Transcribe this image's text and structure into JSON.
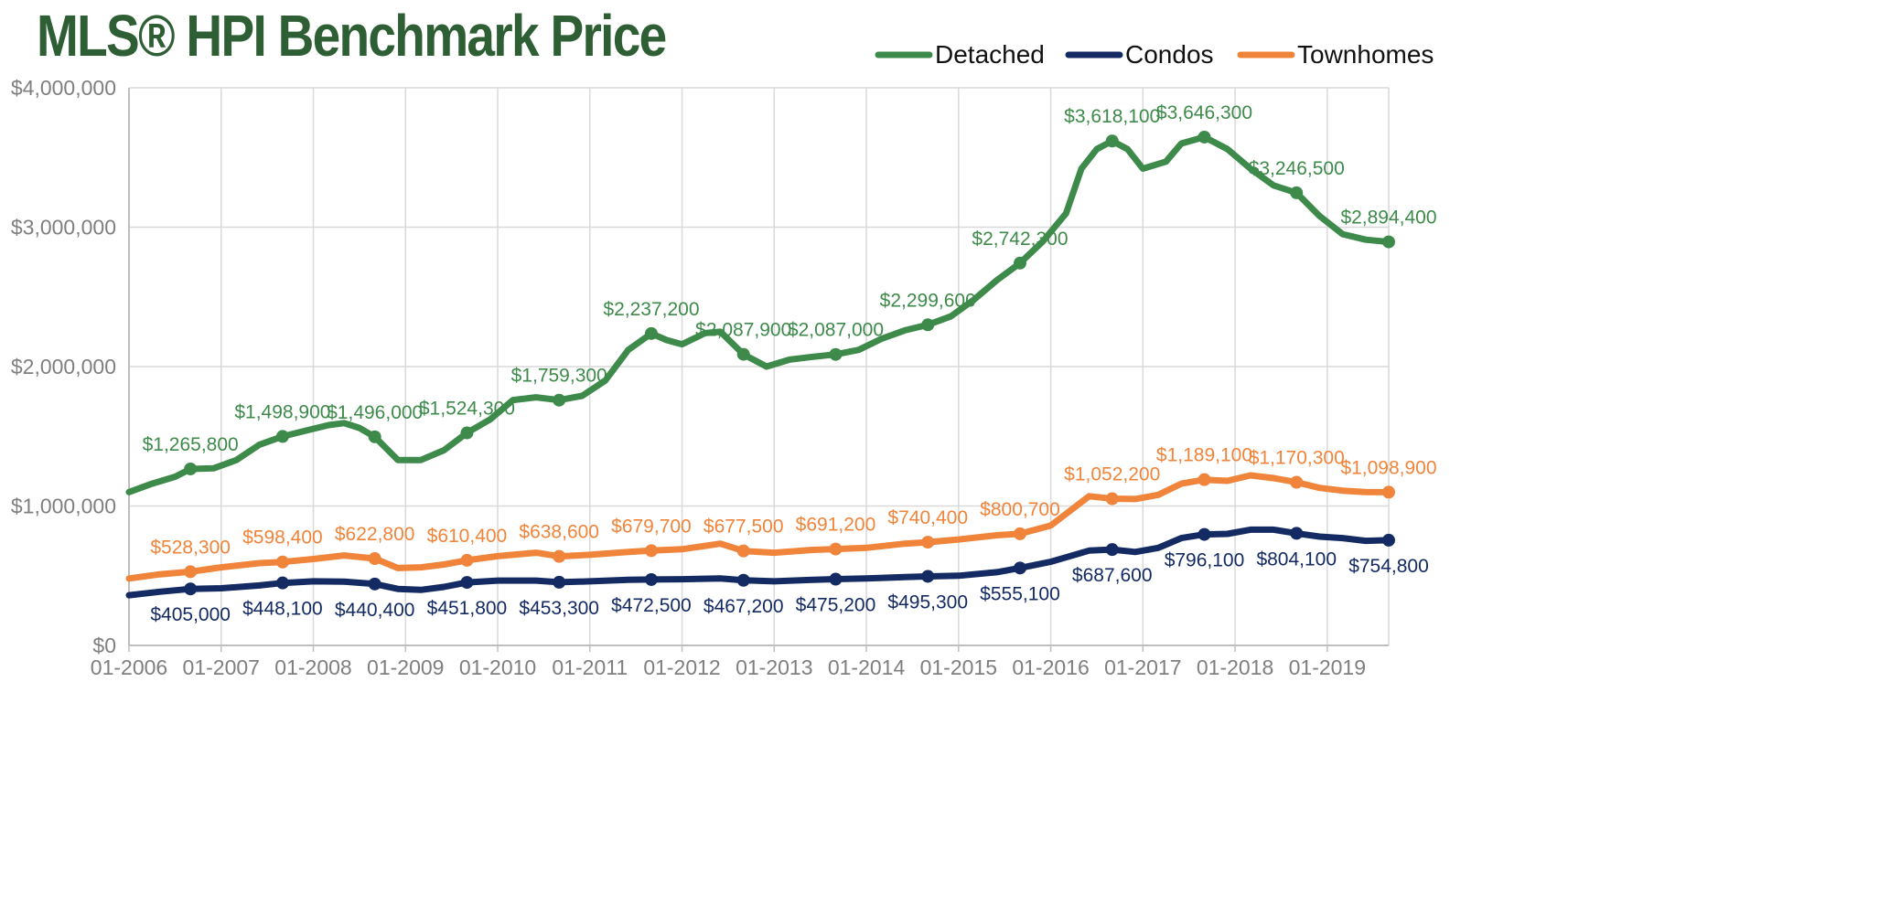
{
  "colors": {
    "title": "#2e5e34",
    "detached": "#3d8a4a",
    "condos": "#132a63",
    "townhomes": "#f0843a",
    "grid": "#d9d9d9",
    "axis": "#bfbfbf",
    "tick": "#7f7f7f"
  },
  "chart_data": {
    "type": "line",
    "title": "MLS® HPI Benchmark Price",
    "xlabel": "",
    "ylabel": "",
    "x_range": [
      "2006-01",
      "2019-09"
    ],
    "ylim": [
      0,
      4000000
    ],
    "y_ticks": [
      {
        "value": 0,
        "label": "$0"
      },
      {
        "value": 1000000,
        "label": "$1,000,000"
      },
      {
        "value": 2000000,
        "label": "$2,000,000"
      },
      {
        "value": 3000000,
        "label": "$3,000,000"
      },
      {
        "value": 4000000,
        "label": "$4,000,000"
      }
    ],
    "x_ticks": [
      "01-2006",
      "01-2007",
      "01-2008",
      "01-2009",
      "01-2010",
      "01-2011",
      "01-2012",
      "01-2013",
      "01-2014",
      "01-2015",
      "01-2016",
      "01-2017",
      "01-2018",
      "01-2019"
    ],
    "grid": true,
    "legend_position": "top-right",
    "series": [
      {
        "name": "Detached",
        "color": "#3d8a4a",
        "points": [
          [
            "2006-01",
            1100000
          ],
          [
            "2006-04",
            1160000
          ],
          [
            "2006-07",
            1210000
          ],
          [
            "2006-09",
            1265800
          ],
          [
            "2006-12",
            1270000
          ],
          [
            "2007-03",
            1330000
          ],
          [
            "2007-06",
            1440000
          ],
          [
            "2007-09",
            1498900
          ],
          [
            "2007-12",
            1540000
          ],
          [
            "2008-03",
            1580000
          ],
          [
            "2008-05",
            1595000
          ],
          [
            "2008-07",
            1560000
          ],
          [
            "2008-09",
            1496000
          ],
          [
            "2008-12",
            1330000
          ],
          [
            "2009-03",
            1330000
          ],
          [
            "2009-06",
            1400000
          ],
          [
            "2009-09",
            1524300
          ],
          [
            "2009-12",
            1620000
          ],
          [
            "2010-03",
            1760000
          ],
          [
            "2010-06",
            1780000
          ],
          [
            "2010-09",
            1759300
          ],
          [
            "2010-12",
            1790000
          ],
          [
            "2011-03",
            1900000
          ],
          [
            "2011-06",
            2120000
          ],
          [
            "2011-09",
            2237200
          ],
          [
            "2011-11",
            2190000
          ],
          [
            "2012-01",
            2160000
          ],
          [
            "2012-04",
            2240000
          ],
          [
            "2012-06",
            2250000
          ],
          [
            "2012-09",
            2087900
          ],
          [
            "2012-12",
            2000000
          ],
          [
            "2013-03",
            2050000
          ],
          [
            "2013-06",
            2070000
          ],
          [
            "2013-09",
            2087000
          ],
          [
            "2013-12",
            2120000
          ],
          [
            "2014-03",
            2200000
          ],
          [
            "2014-06",
            2260000
          ],
          [
            "2014-09",
            2299600
          ],
          [
            "2014-12",
            2360000
          ],
          [
            "2015-03",
            2480000
          ],
          [
            "2015-06",
            2620000
          ],
          [
            "2015-09",
            2742300
          ],
          [
            "2015-12",
            2900000
          ],
          [
            "2016-03",
            3100000
          ],
          [
            "2016-05",
            3420000
          ],
          [
            "2016-07",
            3560000
          ],
          [
            "2016-09",
            3618100
          ],
          [
            "2016-11",
            3560000
          ],
          [
            "2017-01",
            3420000
          ],
          [
            "2017-04",
            3470000
          ],
          [
            "2017-06",
            3600000
          ],
          [
            "2017-09",
            3646300
          ],
          [
            "2017-12",
            3560000
          ],
          [
            "2018-03",
            3420000
          ],
          [
            "2018-06",
            3300000
          ],
          [
            "2018-09",
            3246500
          ],
          [
            "2018-12",
            3080000
          ],
          [
            "2019-03",
            2950000
          ],
          [
            "2019-06",
            2910000
          ],
          [
            "2019-09",
            2894400
          ]
        ],
        "labels": [
          [
            "2006-09",
            1265800,
            "$1,265,800"
          ],
          [
            "2007-09",
            1498900,
            "$1,498,900"
          ],
          [
            "2008-09",
            1496000,
            "$1,496,000"
          ],
          [
            "2009-09",
            1524300,
            "$1,524,300"
          ],
          [
            "2010-09",
            1759300,
            "$1,759,300"
          ],
          [
            "2011-09",
            2237200,
            "$2,237,200"
          ],
          [
            "2012-09",
            2087900,
            "$2,087,900"
          ],
          [
            "2013-09",
            2087000,
            "$2,087,000"
          ],
          [
            "2014-09",
            2299600,
            "$2,299,600"
          ],
          [
            "2015-09",
            2742300,
            "$2,742,300"
          ],
          [
            "2016-09",
            3618100,
            "$3,618,100"
          ],
          [
            "2017-09",
            3646300,
            "$3,646,300"
          ],
          [
            "2018-09",
            3246500,
            "$3,246,500"
          ],
          [
            "2019-09",
            2894400,
            "$2,894,400"
          ]
        ]
      },
      {
        "name": "Condos",
        "color": "#132a63",
        "points": [
          [
            "2006-01",
            360000
          ],
          [
            "2006-05",
            385000
          ],
          [
            "2006-09",
            405000
          ],
          [
            "2007-01",
            410000
          ],
          [
            "2007-06",
            430000
          ],
          [
            "2007-09",
            448100
          ],
          [
            "2008-01",
            460000
          ],
          [
            "2008-05",
            458000
          ],
          [
            "2008-09",
            440400
          ],
          [
            "2008-12",
            405000
          ],
          [
            "2009-03",
            398000
          ],
          [
            "2009-06",
            420000
          ],
          [
            "2009-09",
            451800
          ],
          [
            "2010-01",
            465000
          ],
          [
            "2010-06",
            465000
          ],
          [
            "2010-09",
            453300
          ],
          [
            "2011-01",
            460000
          ],
          [
            "2011-06",
            470000
          ],
          [
            "2011-09",
            472500
          ],
          [
            "2012-01",
            475000
          ],
          [
            "2012-06",
            480000
          ],
          [
            "2012-09",
            467200
          ],
          [
            "2013-01",
            460000
          ],
          [
            "2013-06",
            470000
          ],
          [
            "2013-09",
            475200
          ],
          [
            "2014-01",
            480000
          ],
          [
            "2014-06",
            490000
          ],
          [
            "2014-09",
            495300
          ],
          [
            "2015-01",
            500000
          ],
          [
            "2015-06",
            525000
          ],
          [
            "2015-09",
            555100
          ],
          [
            "2016-01",
            600000
          ],
          [
            "2016-06",
            680000
          ],
          [
            "2016-09",
            687600
          ],
          [
            "2016-12",
            670000
          ],
          [
            "2017-03",
            700000
          ],
          [
            "2017-06",
            770000
          ],
          [
            "2017-09",
            796100
          ],
          [
            "2017-12",
            800000
          ],
          [
            "2018-03",
            830000
          ],
          [
            "2018-06",
            830000
          ],
          [
            "2018-09",
            804100
          ],
          [
            "2018-12",
            780000
          ],
          [
            "2019-03",
            770000
          ],
          [
            "2019-06",
            750000
          ],
          [
            "2019-09",
            754800
          ]
        ],
        "labels": [
          [
            "2006-09",
            405000,
            "$405,000"
          ],
          [
            "2007-09",
            448100,
            "$448,100"
          ],
          [
            "2008-09",
            440400,
            "$440,400"
          ],
          [
            "2009-09",
            451800,
            "$451,800"
          ],
          [
            "2010-09",
            453300,
            "$453,300"
          ],
          [
            "2011-09",
            472500,
            "$472,500"
          ],
          [
            "2012-09",
            467200,
            "$467,200"
          ],
          [
            "2013-09",
            475200,
            "$475,200"
          ],
          [
            "2014-09",
            495300,
            "$495,300"
          ],
          [
            "2015-09",
            555100,
            "$555,100"
          ],
          [
            "2016-09",
            687600,
            "$687,600"
          ],
          [
            "2017-09",
            796100,
            "$796,100"
          ],
          [
            "2018-09",
            804100,
            "$804,100"
          ],
          [
            "2019-09",
            754800,
            "$754,800"
          ]
        ],
        "label_position": "below"
      },
      {
        "name": "Townhomes",
        "color": "#f0843a",
        "points": [
          [
            "2006-01",
            480000
          ],
          [
            "2006-05",
            510000
          ],
          [
            "2006-09",
            528300
          ],
          [
            "2007-01",
            560000
          ],
          [
            "2007-06",
            590000
          ],
          [
            "2007-09",
            598400
          ],
          [
            "2008-01",
            620000
          ],
          [
            "2008-05",
            645000
          ],
          [
            "2008-09",
            622800
          ],
          [
            "2008-12",
            555000
          ],
          [
            "2009-03",
            560000
          ],
          [
            "2009-06",
            580000
          ],
          [
            "2009-09",
            610400
          ],
          [
            "2010-01",
            640000
          ],
          [
            "2010-06",
            665000
          ],
          [
            "2010-09",
            638600
          ],
          [
            "2011-01",
            650000
          ],
          [
            "2011-06",
            670000
          ],
          [
            "2011-09",
            679700
          ],
          [
            "2012-01",
            690000
          ],
          [
            "2012-06",
            730000
          ],
          [
            "2012-09",
            677500
          ],
          [
            "2013-01",
            665000
          ],
          [
            "2013-06",
            685000
          ],
          [
            "2013-09",
            691200
          ],
          [
            "2014-01",
            700000
          ],
          [
            "2014-06",
            730000
          ],
          [
            "2014-09",
            740400
          ],
          [
            "2015-01",
            760000
          ],
          [
            "2015-06",
            790000
          ],
          [
            "2015-09",
            800700
          ],
          [
            "2016-01",
            860000
          ],
          [
            "2016-06",
            1070000
          ],
          [
            "2016-09",
            1052200
          ],
          [
            "2016-12",
            1050000
          ],
          [
            "2017-03",
            1080000
          ],
          [
            "2017-06",
            1160000
          ],
          [
            "2017-09",
            1189100
          ],
          [
            "2017-12",
            1180000
          ],
          [
            "2018-03",
            1220000
          ],
          [
            "2018-06",
            1200000
          ],
          [
            "2018-09",
            1170300
          ],
          [
            "2018-12",
            1130000
          ],
          [
            "2019-03",
            1110000
          ],
          [
            "2019-06",
            1100000
          ],
          [
            "2019-09",
            1098900
          ]
        ],
        "labels": [
          [
            "2006-09",
            528300,
            "$528,300"
          ],
          [
            "2007-09",
            598400,
            "$598,400"
          ],
          [
            "2008-09",
            622800,
            "$622,800"
          ],
          [
            "2009-09",
            610400,
            "$610,400"
          ],
          [
            "2010-09",
            638600,
            "$638,600"
          ],
          [
            "2011-09",
            679700,
            "$679,700"
          ],
          [
            "2012-09",
            677500,
            "$677,500"
          ],
          [
            "2013-09",
            691200,
            "$691,200"
          ],
          [
            "2014-09",
            740400,
            "$740,400"
          ],
          [
            "2015-09",
            800700,
            "$800,700"
          ],
          [
            "2016-09",
            1052200,
            "$1,052,200"
          ],
          [
            "2017-09",
            1189100,
            "$1,189,100"
          ],
          [
            "2018-09",
            1170300,
            "$1,170,300"
          ],
          [
            "2019-09",
            1098900,
            "$1,098,900"
          ]
        ]
      }
    ]
  }
}
